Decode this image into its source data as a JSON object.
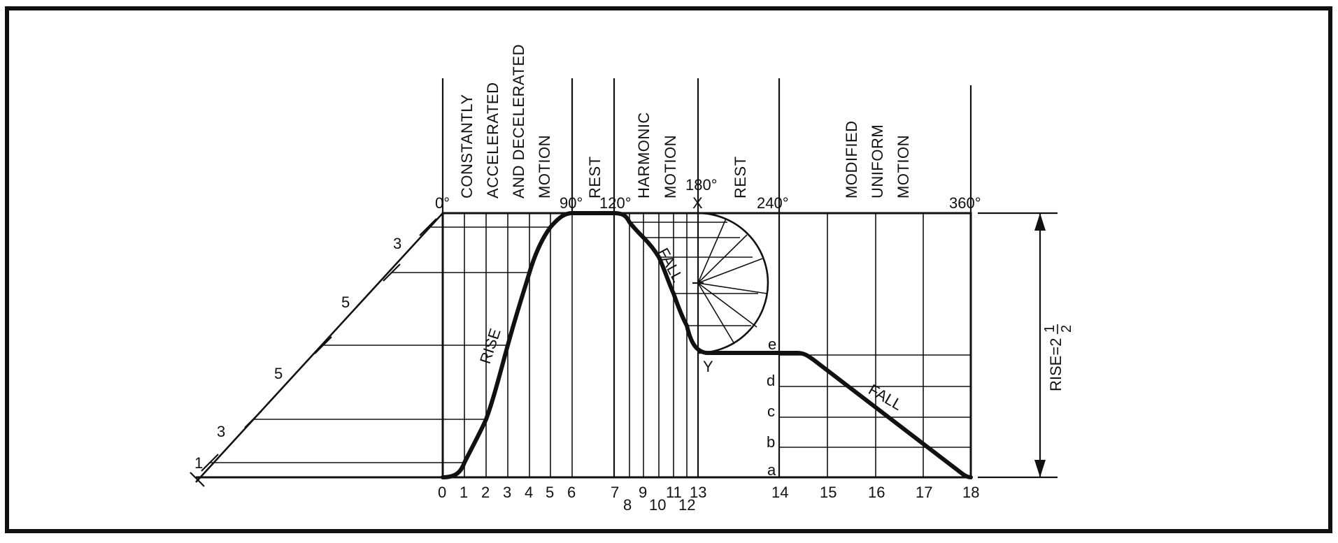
{
  "header_labels": {
    "motion1_lines": [
      "CONSTANTLY",
      "ACCELERATED",
      "AND DECELERATED",
      "MOTION"
    ],
    "rest1": "REST",
    "motion2_lines": [
      "HARMONIC",
      "MOTION"
    ],
    "rest2": "REST",
    "motion3_lines": [
      "MODIFIED",
      "UNIFORM",
      "MOTION"
    ]
  },
  "degree_labels": {
    "d0": "0°",
    "d90": "90°",
    "d120": "120°",
    "d180": "180°",
    "d240": "240°",
    "d360": "360°",
    "x_point": "X"
  },
  "bottom_numbers": [
    "0",
    "1",
    "2",
    "3",
    "4",
    "5",
    "6",
    "7",
    "8",
    "9",
    "10",
    "11",
    "12",
    "13",
    "14",
    "15",
    "16",
    "17",
    "18"
  ],
  "scale_labels": [
    "1",
    "3",
    "5",
    "5",
    "3"
  ],
  "curve_labels": {
    "rise": "RISE",
    "fall1": "FALL",
    "fall2": "FALL",
    "y_point": "Y"
  },
  "letter_labels": [
    "e",
    "d",
    "c",
    "b",
    "a"
  ],
  "dimension_label": {
    "prefix": "RISE=2",
    "fraction_num": "1",
    "fraction_den": "2"
  },
  "colors": {
    "ink": "#111111",
    "paper": "#ffffff"
  }
}
